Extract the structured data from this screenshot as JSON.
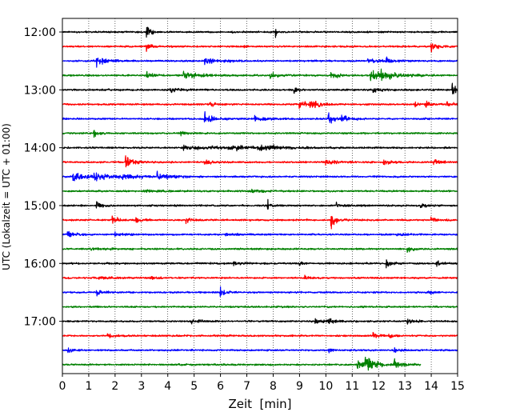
{
  "chart_data": {
    "type": "line",
    "title": "",
    "xlabel": "Zeit  [min]",
    "ylabel": "UTC (Lokalzeit = UTC + 01:00)",
    "xlim": [
      0,
      15
    ],
    "x_ticks": [
      "0",
      "1",
      "2",
      "3",
      "4",
      "5",
      "6",
      "7",
      "8",
      "9",
      "10",
      "11",
      "12",
      "13",
      "14",
      "15"
    ],
    "y_tick_labels": [
      "12:00",
      "13:00",
      "14:00",
      "15:00",
      "16:00",
      "17:00"
    ],
    "y_tick_rows": [
      0,
      4,
      8,
      12,
      16,
      20
    ],
    "grid": "vertical dotted",
    "trace_colors": [
      "#000000",
      "#ff0000",
      "#0000ff",
      "#008000"
    ],
    "series": [
      {
        "start": "12:00",
        "events": [
          [
            3.2,
            1.8,
            0.15
          ],
          [
            8.1,
            1.0,
            0.1
          ]
        ]
      },
      {
        "start": "12:15",
        "events": [
          [
            3.2,
            1.6,
            0.15
          ],
          [
            6.9,
            0.6,
            0.1
          ],
          [
            14.0,
            1.2,
            0.3
          ]
        ]
      },
      {
        "start": "12:30",
        "events": [
          [
            1.3,
            1.1,
            0.4
          ],
          [
            5.4,
            0.9,
            0.5
          ],
          [
            11.6,
            0.6,
            0.5
          ],
          [
            12.3,
            0.8,
            0.2
          ]
        ]
      },
      {
        "start": "12:45",
        "events": [
          [
            3.2,
            0.8,
            0.3
          ],
          [
            4.6,
            0.9,
            0.6
          ],
          [
            7.9,
            0.8,
            0.3
          ],
          [
            10.2,
            0.7,
            0.3
          ],
          [
            11.7,
            1.3,
            0.6
          ],
          [
            12.1,
            0.9,
            0.4
          ]
        ]
      },
      {
        "start": "13:00",
        "events": [
          [
            4.1,
            0.6,
            0.3
          ],
          [
            8.8,
            0.7,
            0.2
          ],
          [
            11.8,
            0.6,
            0.3
          ],
          [
            14.8,
            1.4,
            0.3
          ]
        ]
      },
      {
        "start": "13:15",
        "events": [
          [
            5.6,
            0.7,
            0.2
          ],
          [
            9.0,
            0.8,
            0.3
          ],
          [
            9.4,
            1.1,
            0.2
          ],
          [
            9.6,
            0.9,
            0.2
          ],
          [
            13.4,
            0.8,
            0.2
          ],
          [
            13.8,
            0.8,
            0.2
          ],
          [
            14.6,
            0.8,
            0.2
          ]
        ]
      },
      {
        "start": "13:30",
        "events": [
          [
            5.4,
            1.4,
            0.3
          ],
          [
            7.3,
            0.5,
            0.5
          ],
          [
            10.1,
            1.5,
            0.2
          ],
          [
            10.6,
            0.7,
            0.3
          ]
        ]
      },
      {
        "start": "13:45",
        "events": [
          [
            1.2,
            0.9,
            0.2
          ],
          [
            4.5,
            0.5,
            0.3
          ]
        ]
      },
      {
        "start": "14:00",
        "events": [
          [
            4.6,
            0.6,
            1.2
          ],
          [
            6.3,
            0.7,
            1.0
          ],
          [
            7.5,
            0.7,
            0.6
          ]
        ]
      },
      {
        "start": "14:15",
        "events": [
          [
            2.4,
            1.3,
            0.3
          ],
          [
            5.4,
            0.7,
            0.3
          ],
          [
            10.0,
            0.8,
            0.4
          ],
          [
            12.2,
            0.7,
            0.3
          ],
          [
            14.1,
            0.8,
            0.3
          ]
        ]
      },
      {
        "start": "14:30",
        "events": [
          [
            0.4,
            1.2,
            0.5
          ],
          [
            1.2,
            1.0,
            0.6
          ],
          [
            2.3,
            0.8,
            0.6
          ],
          [
            3.6,
            0.7,
            0.5
          ]
        ]
      },
      {
        "start": "14:45",
        "events": [
          [
            3.1,
            0.4,
            0.4
          ],
          [
            7.2,
            0.5,
            0.4
          ]
        ]
      },
      {
        "start": "15:00",
        "events": [
          [
            1.3,
            0.9,
            0.2
          ],
          [
            7.8,
            1.1,
            0.15
          ],
          [
            10.4,
            0.5,
            0.4
          ],
          [
            13.6,
            0.5,
            0.3
          ]
        ]
      },
      {
        "start": "15:15",
        "events": [
          [
            1.9,
            1.0,
            0.2
          ],
          [
            2.8,
            0.7,
            0.2
          ],
          [
            4.7,
            0.8,
            0.2
          ],
          [
            10.2,
            1.8,
            0.2
          ],
          [
            14.0,
            0.6,
            0.2
          ]
        ]
      },
      {
        "start": "15:30",
        "events": [
          [
            0.2,
            0.8,
            0.3
          ],
          [
            2.0,
            0.6,
            0.3
          ],
          [
            6.2,
            0.4,
            0.3
          ],
          [
            12.7,
            0.4,
            0.3
          ]
        ]
      },
      {
        "start": "15:45",
        "events": [
          [
            1.1,
            0.4,
            0.4
          ],
          [
            13.1,
            1.1,
            0.2
          ]
        ]
      },
      {
        "start": "16:00",
        "events": [
          [
            6.5,
            0.5,
            0.3
          ],
          [
            9.0,
            0.4,
            0.3
          ],
          [
            12.3,
            1.0,
            0.2
          ],
          [
            14.2,
            0.5,
            0.2
          ]
        ]
      },
      {
        "start": "16:15",
        "events": [
          [
            1.4,
            0.5,
            0.4
          ],
          [
            3.4,
            0.3,
            0.3
          ],
          [
            9.2,
            0.4,
            0.3
          ]
        ]
      },
      {
        "start": "16:30",
        "events": [
          [
            1.3,
            0.6,
            0.3
          ],
          [
            6.0,
            1.1,
            0.2
          ],
          [
            13.9,
            0.3,
            0.3
          ]
        ]
      },
      {
        "start": "16:45",
        "events": []
      },
      {
        "start": "17:00",
        "events": [
          [
            4.9,
            0.6,
            0.3
          ],
          [
            9.6,
            0.6,
            0.3
          ],
          [
            10.1,
            0.5,
            0.3
          ],
          [
            13.1,
            0.5,
            0.3
          ]
        ]
      },
      {
        "start": "17:15",
        "events": [
          [
            1.7,
            0.4,
            0.3
          ],
          [
            11.8,
            0.9,
            0.2
          ],
          [
            12.4,
            0.4,
            0.2
          ]
        ]
      },
      {
        "start": "17:30",
        "events": [
          [
            0.2,
            0.6,
            0.2
          ],
          [
            10.1,
            0.6,
            0.2
          ],
          [
            12.6,
            0.5,
            0.2
          ]
        ]
      },
      {
        "start": "17:45",
        "end": 13.6,
        "events": [
          [
            11.2,
            1.2,
            0.4
          ],
          [
            11.5,
            2.2,
            0.3
          ],
          [
            12.6,
            0.9,
            0.3
          ]
        ]
      }
    ]
  }
}
